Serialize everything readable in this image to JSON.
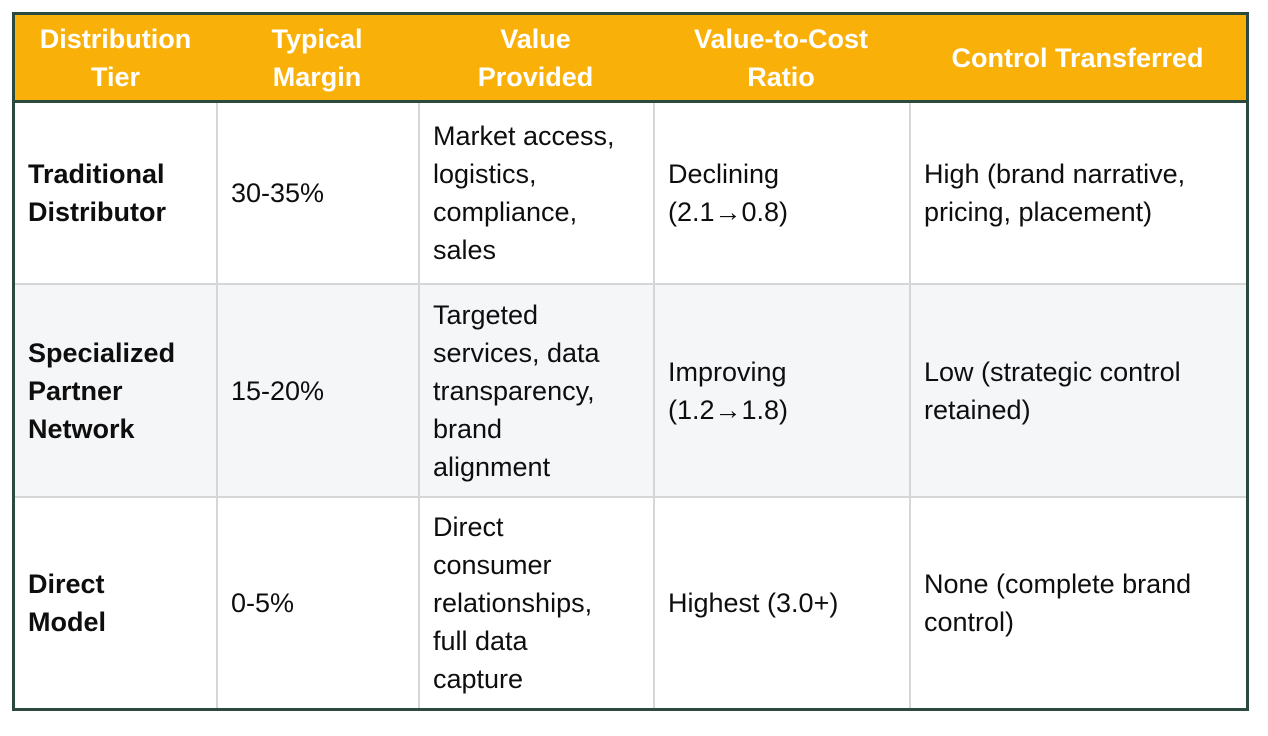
{
  "table": {
    "header": {
      "cols": [
        "Distribution\nTier",
        "Typical\nMargin",
        "Value\nProvided",
        "Value-to-Cost\nRatio",
        "Control Transferred"
      ]
    },
    "rows": [
      {
        "tier": "Traditional\nDistributor",
        "margin": "30-35%",
        "value_provided": "Market access,\nlogistics,\ncompliance,\nsales",
        "ratio": "Declining\n(2.1→0.8)",
        "control": "High (brand narrative,\npricing, placement)"
      },
      {
        "tier": "Specialized\nPartner\nNetwork",
        "margin": "15-20%",
        "value_provided": "Targeted\nservices, data\ntransparency,\nbrand\nalignment",
        "ratio": "Improving\n(1.2→1.8)",
        "control": "Low (strategic control\nretained)"
      },
      {
        "tier": "Direct\nModel",
        "margin": "0-5%",
        "value_provided": "Direct\nconsumer\nrelationships,\nfull data\ncapture",
        "ratio": "Highest (3.0+)",
        "control": "None (complete brand\ncontrol)"
      }
    ]
  },
  "colors": {
    "header_bg": "#F9B10A",
    "header_text": "#FFFFFF",
    "outer_border": "#2B4A3D",
    "alt_row_bg": "#F5F6F8",
    "grid_line": "#D5D6D7",
    "body_text": "#0E0E0E"
  }
}
